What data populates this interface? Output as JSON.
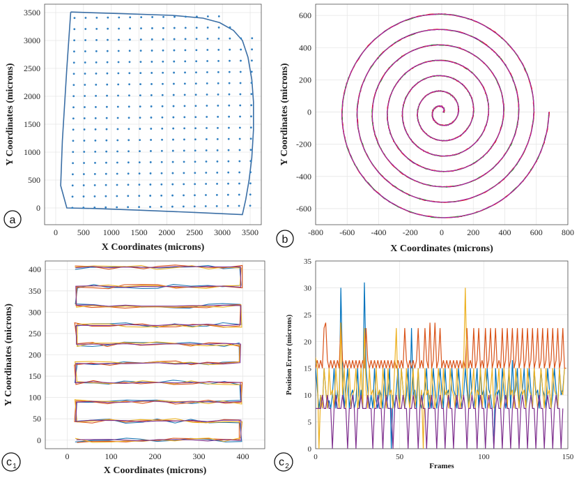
{
  "panels": {
    "a": {
      "letter": "a",
      "sub": ""
    },
    "b": {
      "letter": "b",
      "sub": ""
    },
    "c1": {
      "letter": "c",
      "sub": "1"
    },
    "c2": {
      "letter": "c",
      "sub": "2"
    }
  },
  "chart_data": [
    {
      "id": "a",
      "type": "scatter",
      "title": "",
      "xlabel": "X Coordinates (microns)",
      "ylabel": "Y Coordinates (microns)",
      "xlim": [
        -200,
        3700
      ],
      "ylim": [
        -300,
        3650
      ],
      "xticks": [
        0,
        500,
        1000,
        1500,
        2000,
        2500,
        3000,
        3500
      ],
      "yticks": [
        0,
        500,
        1000,
        1500,
        2000,
        2500,
        3000,
        3500
      ],
      "grid": true,
      "colors": {
        "line": "#3a6ea5",
        "points": "#2f7fc1"
      },
      "boundary": [
        [
          270,
          3510
        ],
        [
          1200,
          3480
        ],
        [
          2100,
          3450
        ],
        [
          2650,
          3400
        ],
        [
          2950,
          3320
        ],
        [
          3200,
          3180
        ],
        [
          3360,
          3000
        ],
        [
          3460,
          2700
        ],
        [
          3530,
          2300
        ],
        [
          3560,
          1900
        ],
        [
          3560,
          1400
        ],
        [
          3530,
          900
        ],
        [
          3480,
          500
        ],
        [
          3420,
          150
        ],
        [
          3360,
          -120
        ],
        [
          2500,
          -80
        ],
        [
          1500,
          -40
        ],
        [
          700,
          -10
        ],
        [
          200,
          0
        ],
        [
          90,
          400
        ],
        [
          120,
          1200
        ],
        [
          200,
          2500
        ],
        [
          270,
          3510
        ]
      ],
      "grid_points": {
        "x_start": 300,
        "x_end": 3500,
        "x_step": 200,
        "y_start": 0,
        "y_end": 3400,
        "y_step": 200
      }
    },
    {
      "id": "b",
      "type": "line",
      "title": "",
      "xlabel": "X Coordinates (microns)",
      "ylabel": "Y Coordinates (microns)",
      "xlim": [
        -800,
        800
      ],
      "ylim": [
        -700,
        670
      ],
      "xticks": [
        -800,
        -600,
        -400,
        -200,
        0,
        200,
        400,
        600,
        800
      ],
      "yticks": [
        -600,
        -400,
        -200,
        0,
        200,
        400,
        600
      ],
      "grid": true,
      "spiral": {
        "turns": 7,
        "r_max": 680,
        "center": [
          0,
          0
        ]
      },
      "series": [
        {
          "color": "#2b1f4f",
          "noise": 0
        },
        {
          "color": "#1fb31f",
          "noise": 6
        },
        {
          "color": "#e02020",
          "noise": 6
        },
        {
          "color": "#b020b0",
          "noise": 4
        }
      ]
    },
    {
      "id": "c1",
      "type": "line",
      "title": "",
      "xlabel": "X Coordinates (microns)",
      "ylabel": "Y Coordinates (microns)",
      "xlim": [
        -50,
        450
      ],
      "ylim": [
        -20,
        420
      ],
      "xticks": [
        0,
        100,
        200,
        300,
        400
      ],
      "yticks": [
        0,
        50,
        100,
        150,
        200,
        250,
        300,
        350,
        400
      ],
      "grid": true,
      "raster": {
        "rows": [
          0,
          45,
          90,
          135,
          180,
          225,
          270,
          315,
          360,
          405
        ],
        "x_left": 20,
        "x_right": 395
      },
      "series": [
        {
          "color": "#1f77b4",
          "noise": 8
        },
        {
          "color": "#d95319",
          "noise": 8
        },
        {
          "color": "#edb120",
          "noise": 8
        },
        {
          "color": "#7e2f8e",
          "noise": 3
        }
      ]
    },
    {
      "id": "c2",
      "type": "line",
      "title": "",
      "xlabel": "Frames",
      "ylabel": "Position Error (microns)",
      "xlim": [
        0,
        150
      ],
      "ylim": [
        0,
        35
      ],
      "xticks": [
        0,
        50,
        100,
        150
      ],
      "yticks": [
        0,
        5,
        10,
        15,
        20,
        25,
        30,
        35
      ],
      "grid": true,
      "series": [
        {
          "color": "#0072bd",
          "values": [
            15,
            11,
            7.5,
            10,
            7.5,
            15,
            11,
            7.5,
            9,
            7.5,
            10,
            15,
            7.5,
            11,
            7.5,
            30,
            15,
            7.5,
            11,
            15,
            7.5,
            10,
            11,
            7.5,
            9,
            15,
            7.5,
            11,
            7.5,
            31,
            15,
            11,
            7.5,
            10,
            7.5,
            15,
            9,
            7.5,
            11,
            10,
            7.5,
            15,
            7.5,
            10,
            15,
            0,
            10,
            7.5,
            11,
            15,
            7.5,
            15,
            11,
            7.5,
            10,
            15,
            7.5,
            22.5,
            10,
            11,
            7.5,
            15,
            9,
            7.5,
            10,
            11,
            15,
            7.5,
            10,
            7.5,
            15,
            11,
            7.5,
            10,
            15,
            11,
            7.5,
            15,
            10,
            11,
            7.5,
            15,
            11,
            10,
            7.5,
            15,
            11,
            7.5,
            10,
            15,
            11,
            7.5,
            15,
            10,
            7.5,
            11,
            15,
            7.5,
            15,
            10,
            11,
            7.5,
            15,
            11,
            10,
            7.5,
            0,
            15,
            10,
            11,
            7.5,
            15,
            11,
            7.5,
            10,
            15,
            7.5,
            16.5,
            10,
            11,
            15,
            7.5,
            10,
            11,
            15,
            7.5,
            10,
            15,
            11,
            7.5,
            15,
            10,
            11,
            7.5,
            15,
            11,
            10,
            7.5,
            15,
            11,
            7.5,
            10,
            15,
            11,
            7.5,
            15,
            10,
            11,
            15
          ]
        },
        {
          "color": "#d95319",
          "values": [
            15,
            16.5,
            15,
            16.5,
            15,
            22.5,
            23.5,
            16.5,
            15,
            16.5,
            15,
            16.5,
            15,
            16.5,
            15,
            23.5,
            16.5,
            15,
            16.5,
            15,
            16.5,
            15,
            16.5,
            15,
            16.5,
            15,
            16.5,
            15,
            16.5,
            15,
            22.5,
            16.5,
            15,
            16.5,
            15,
            16.5,
            15,
            16.5,
            15,
            16.5,
            15,
            16.5,
            15,
            16.5,
            15,
            16.5,
            15,
            16.5,
            15,
            16.5,
            15,
            16.5,
            15,
            22.5,
            16.5,
            15,
            16.5,
            15,
            16.5,
            15,
            16.5,
            22.5,
            15,
            16.5,
            15,
            22.5,
            16.5,
            15,
            23.5,
            15,
            16.5,
            23.5,
            15,
            16.5,
            22.5,
            15,
            16.5,
            15,
            16.5,
            15,
            16.5,
            15,
            16.5,
            15,
            16.5,
            15,
            16.5,
            15,
            16.5,
            15,
            22.5,
            15,
            16.5,
            15,
            22.5,
            15,
            16.5,
            22.5,
            15,
            16.5,
            15,
            22.5,
            15,
            16.5,
            22.5,
            15,
            16.5,
            22.5,
            15,
            16.5,
            15,
            22.5,
            15,
            16.5,
            22.5,
            15,
            16.5,
            22.5,
            15,
            16.5,
            22.5,
            15,
            16.5,
            22.5,
            15,
            16.5,
            22.5,
            15,
            16.5,
            22.5,
            15,
            16.5,
            22.5,
            15,
            16.5,
            22.5,
            15,
            16.5,
            22.5,
            15,
            16.5,
            22.5,
            15,
            16.5,
            22.5,
            15,
            16.5,
            22.5,
            15,
            15
          ]
        },
        {
          "color": "#edb120",
          "values": [
            17,
            15,
            0,
            10,
            7.5,
            15,
            11,
            7.5,
            15,
            10,
            11,
            7.5,
            15,
            11,
            7.5,
            23.5,
            10,
            15,
            7.5,
            11,
            15,
            7.5,
            10,
            11,
            15,
            7.5,
            10,
            15,
            7.5,
            22.5,
            11,
            7.5,
            15,
            10,
            11,
            7.5,
            15,
            10,
            11,
            7.5,
            15,
            11,
            7.5,
            15,
            10,
            11,
            7.5,
            15,
            22.5,
            10,
            7.5,
            15,
            11,
            7.5,
            15,
            10,
            7.5,
            11,
            15,
            7.5,
            10,
            15,
            7.5,
            11,
            0,
            15,
            10,
            11,
            7.5,
            15,
            11,
            7.5,
            10,
            15,
            11,
            7.5,
            15,
            10,
            11,
            7.5,
            15,
            11,
            10,
            7.5,
            15,
            11,
            7.5,
            10,
            15,
            30,
            15,
            7.5,
            10,
            11,
            15,
            7.5,
            11,
            10,
            15,
            7.5,
            11,
            15,
            10,
            7.5,
            11,
            15,
            7.5,
            10,
            11,
            15,
            7.5,
            10,
            15,
            11,
            7.5,
            15,
            10,
            11,
            7.5,
            15,
            11,
            7.5,
            15,
            10,
            11,
            7.5,
            15,
            11,
            10,
            7.5,
            15,
            11,
            7.5,
            10,
            15,
            11,
            7.5,
            15,
            10,
            11,
            7.5,
            15,
            11,
            10,
            7.5,
            15,
            11,
            10,
            15
          ]
        },
        {
          "color": "#7e2f8e",
          "values": [
            7.5,
            7.5,
            7.5,
            7.5,
            10,
            7.5,
            7.5,
            10,
            7.5,
            7.5,
            0,
            7.5,
            10,
            7.5,
            7.5,
            7.5,
            10,
            7.5,
            7.5,
            0,
            7.5,
            7.5,
            10,
            7.5,
            0,
            7.5,
            7.5,
            10,
            7.5,
            7.5,
            7.5,
            10,
            7.5,
            7.5,
            0,
            7.5,
            7.5,
            10,
            7.5,
            7.5,
            0,
            7.5,
            10,
            7.5,
            7.5,
            7.5,
            0,
            7.5,
            10,
            7.5,
            7.5,
            7.5,
            10,
            7.5,
            7.5,
            0,
            7.5,
            7.5,
            10,
            7.5,
            7.5,
            0,
            7.5,
            10,
            7.5,
            7.5,
            0,
            7.5,
            7.5,
            10,
            7.5,
            7.5,
            0,
            7.5,
            10,
            7.5,
            7.5,
            0,
            7.5,
            10,
            7.5,
            7.5,
            0,
            7.5,
            10,
            7.5,
            7.5,
            7.5,
            10,
            7.5,
            0,
            7.5,
            7.5,
            10,
            7.5,
            7.5,
            0,
            7.5,
            10,
            7.5,
            7.5,
            0,
            7.5,
            10,
            7.5,
            7.5,
            0,
            7.5,
            10,
            7.5,
            7.5,
            0,
            7.5,
            10,
            7.5,
            7.5,
            0,
            7.5,
            10,
            7.5,
            7.5,
            0,
            7.5,
            10,
            7.5,
            7.5,
            0,
            7.5,
            10,
            7.5,
            7.5,
            0,
            7.5,
            10,
            7.5,
            7.5,
            0,
            7.5,
            10,
            7.5,
            7.5,
            0,
            7.5,
            10,
            7.5,
            7.5,
            0,
            7.5
          ]
        }
      ]
    }
  ]
}
